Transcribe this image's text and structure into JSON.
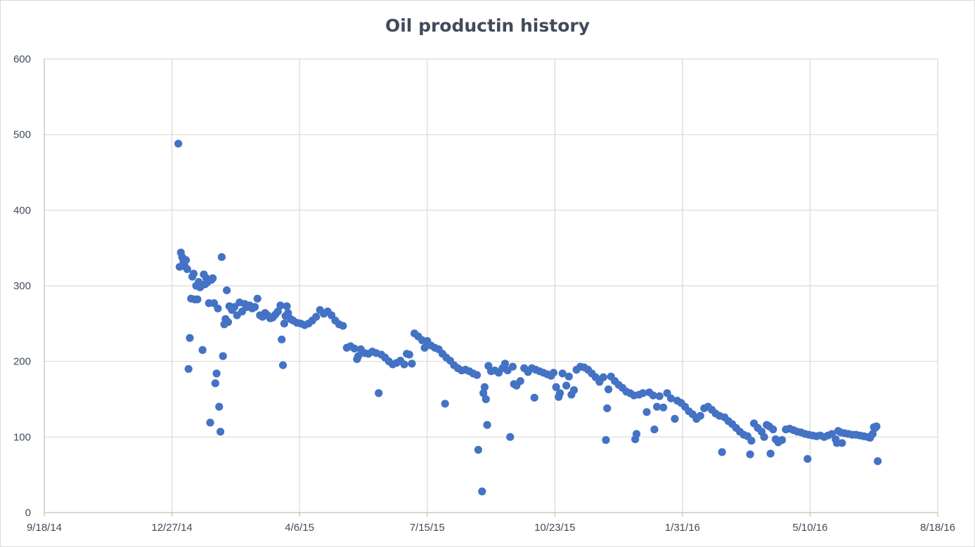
{
  "chart_data": {
    "type": "scatter",
    "title": "Oil productin history",
    "xlabel": "",
    "ylabel": "",
    "x_axis_type": "date",
    "xlim": [
      "2014-09-18",
      "2016-08-18"
    ],
    "ylim": [
      0,
      600
    ],
    "x_ticks": [
      "9/18/14",
      "12/27/14",
      "4/6/15",
      "7/15/15",
      "10/23/15",
      "1/31/16",
      "5/10/16",
      "8/18/16"
    ],
    "y_ticks": [
      0,
      100,
      200,
      300,
      400,
      500,
      600
    ],
    "grid": true,
    "legend": "none",
    "marker_color": "#4472c4",
    "series": [
      {
        "points": [
          [
            "2015-01-01",
            488
          ],
          [
            "2015-01-02",
            325
          ],
          [
            "2015-01-03",
            344
          ],
          [
            "2015-01-04",
            338
          ],
          [
            "2015-01-05",
            333
          ],
          [
            "2015-01-06",
            326
          ],
          [
            "2015-01-07",
            334
          ],
          [
            "2015-01-08",
            322
          ],
          [
            "2015-01-09",
            190
          ],
          [
            "2015-01-10",
            231
          ],
          [
            "2015-01-11",
            283
          ],
          [
            "2015-01-12",
            312
          ],
          [
            "2015-01-13",
            316
          ],
          [
            "2015-01-14",
            282
          ],
          [
            "2015-01-15",
            300
          ],
          [
            "2015-01-16",
            282
          ],
          [
            "2015-01-17",
            305
          ],
          [
            "2015-01-18",
            298
          ],
          [
            "2015-01-19",
            300
          ],
          [
            "2015-01-20",
            215
          ],
          [
            "2015-01-21",
            315
          ],
          [
            "2015-01-22",
            302
          ],
          [
            "2015-01-23",
            310
          ],
          [
            "2015-01-24",
            305
          ],
          [
            "2015-01-25",
            277
          ],
          [
            "2015-01-26",
            119
          ],
          [
            "2015-01-27",
            308
          ],
          [
            "2015-01-28",
            310
          ],
          [
            "2015-01-29",
            277
          ],
          [
            "2015-01-30",
            171
          ],
          [
            "2015-01-31",
            184
          ],
          [
            "2015-02-01",
            270
          ],
          [
            "2015-02-02",
            140
          ],
          [
            "2015-02-03",
            107
          ],
          [
            "2015-02-04",
            338
          ],
          [
            "2015-02-05",
            207
          ],
          [
            "2015-02-06",
            249
          ],
          [
            "2015-02-07",
            256
          ],
          [
            "2015-02-08",
            294
          ],
          [
            "2015-02-09",
            252
          ],
          [
            "2015-02-10",
            273
          ],
          [
            "2015-02-12",
            268
          ],
          [
            "2015-02-14",
            272
          ],
          [
            "2015-02-16",
            261
          ],
          [
            "2015-02-18",
            278
          ],
          [
            "2015-02-20",
            266
          ],
          [
            "2015-02-22",
            276
          ],
          [
            "2015-02-24",
            272
          ],
          [
            "2015-02-26",
            274
          ],
          [
            "2015-02-28",
            270
          ],
          [
            "2015-03-02",
            272
          ],
          [
            "2015-03-04",
            283
          ],
          [
            "2015-03-06",
            261
          ],
          [
            "2015-03-08",
            259
          ],
          [
            "2015-03-10",
            264
          ],
          [
            "2015-03-12",
            261
          ],
          [
            "2015-03-14",
            257
          ],
          [
            "2015-03-16",
            258
          ],
          [
            "2015-03-18",
            262
          ],
          [
            "2015-03-20",
            266
          ],
          [
            "2015-03-22",
            274
          ],
          [
            "2015-03-23",
            229
          ],
          [
            "2015-03-24",
            195
          ],
          [
            "2015-03-25",
            250
          ],
          [
            "2015-03-26",
            260
          ],
          [
            "2015-03-27",
            273
          ],
          [
            "2015-03-28",
            264
          ],
          [
            "2015-03-30",
            256
          ],
          [
            "2015-04-01",
            254
          ],
          [
            "2015-04-04",
            251
          ],
          [
            "2015-04-07",
            250
          ],
          [
            "2015-04-10",
            248
          ],
          [
            "2015-04-13",
            250
          ],
          [
            "2015-04-16",
            254
          ],
          [
            "2015-04-19",
            259
          ],
          [
            "2015-04-22",
            268
          ],
          [
            "2015-04-25",
            263
          ],
          [
            "2015-04-28",
            266
          ],
          [
            "2015-05-01",
            261
          ],
          [
            "2015-05-04",
            254
          ],
          [
            "2015-05-07",
            249
          ],
          [
            "2015-05-10",
            247
          ],
          [
            "2015-05-13",
            218
          ],
          [
            "2015-05-16",
            220
          ],
          [
            "2015-05-19",
            217
          ],
          [
            "2015-05-21",
            203
          ],
          [
            "2015-05-22",
            207
          ],
          [
            "2015-05-24",
            216
          ],
          [
            "2015-05-27",
            211
          ],
          [
            "2015-05-30",
            210
          ],
          [
            "2015-06-02",
            213
          ],
          [
            "2015-06-05",
            211
          ],
          [
            "2015-06-07",
            158
          ],
          [
            "2015-06-09",
            209
          ],
          [
            "2015-06-12",
            205
          ],
          [
            "2015-06-15",
            200
          ],
          [
            "2015-06-18",
            196
          ],
          [
            "2015-06-21",
            198
          ],
          [
            "2015-06-24",
            201
          ],
          [
            "2015-06-27",
            196
          ],
          [
            "2015-06-29",
            210
          ],
          [
            "2015-07-01",
            209
          ],
          [
            "2015-07-03",
            197
          ],
          [
            "2015-07-05",
            237
          ],
          [
            "2015-07-08",
            233
          ],
          [
            "2015-07-11",
            228
          ],
          [
            "2015-07-13",
            218
          ],
          [
            "2015-07-15",
            227
          ],
          [
            "2015-07-18",
            221
          ],
          [
            "2015-07-21",
            218
          ],
          [
            "2015-07-24",
            216
          ],
          [
            "2015-07-27",
            210
          ],
          [
            "2015-07-29",
            144
          ],
          [
            "2015-07-30",
            205
          ],
          [
            "2015-08-02",
            201
          ],
          [
            "2015-08-05",
            195
          ],
          [
            "2015-08-08",
            191
          ],
          [
            "2015-08-11",
            188
          ],
          [
            "2015-08-14",
            189
          ],
          [
            "2015-08-17",
            187
          ],
          [
            "2015-08-20",
            184
          ],
          [
            "2015-08-23",
            182
          ],
          [
            "2015-08-24",
            83
          ],
          [
            "2015-08-27",
            28
          ],
          [
            "2015-08-28",
            158
          ],
          [
            "2015-08-29",
            166
          ],
          [
            "2015-08-30",
            150
          ],
          [
            "2015-08-31",
            116
          ],
          [
            "2015-09-01",
            194
          ],
          [
            "2015-09-03",
            187
          ],
          [
            "2015-09-06",
            188
          ],
          [
            "2015-09-09",
            185
          ],
          [
            "2015-09-12",
            191
          ],
          [
            "2015-09-14",
            197
          ],
          [
            "2015-09-16",
            188
          ],
          [
            "2015-09-18",
            100
          ],
          [
            "2015-09-20",
            193
          ],
          [
            "2015-09-21",
            170
          ],
          [
            "2015-09-23",
            168
          ],
          [
            "2015-09-26",
            174
          ],
          [
            "2015-09-29",
            191
          ],
          [
            "2015-10-02",
            186
          ],
          [
            "2015-10-05",
            191
          ],
          [
            "2015-10-07",
            152
          ],
          [
            "2015-10-08",
            189
          ],
          [
            "2015-10-11",
            187
          ],
          [
            "2015-10-14",
            185
          ],
          [
            "2015-10-17",
            183
          ],
          [
            "2015-10-20",
            181
          ],
          [
            "2015-10-22",
            185
          ],
          [
            "2015-10-24",
            166
          ],
          [
            "2015-10-26",
            153
          ],
          [
            "2015-10-27",
            158
          ],
          [
            "2015-10-29",
            184
          ],
          [
            "2015-11-01",
            168
          ],
          [
            "2015-11-03",
            180
          ],
          [
            "2015-11-05",
            156
          ],
          [
            "2015-11-07",
            162
          ],
          [
            "2015-11-09",
            189
          ],
          [
            "2015-11-12",
            193
          ],
          [
            "2015-11-15",
            192
          ],
          [
            "2015-11-18",
            189
          ],
          [
            "2015-11-21",
            184
          ],
          [
            "2015-11-24",
            179
          ],
          [
            "2015-11-27",
            173
          ],
          [
            "2015-11-30",
            179
          ],
          [
            "2015-12-02",
            96
          ],
          [
            "2015-12-03",
            138
          ],
          [
            "2015-12-04",
            163
          ],
          [
            "2015-12-06",
            180
          ],
          [
            "2015-12-09",
            174
          ],
          [
            "2015-12-12",
            169
          ],
          [
            "2015-12-15",
            165
          ],
          [
            "2015-12-18",
            160
          ],
          [
            "2015-12-21",
            158
          ],
          [
            "2015-12-24",
            155
          ],
          [
            "2015-12-25",
            97
          ],
          [
            "2015-12-26",
            104
          ],
          [
            "2015-12-28",
            156
          ],
          [
            "2015-12-31",
            158
          ],
          [
            "2016-01-03",
            133
          ],
          [
            "2016-01-05",
            159
          ],
          [
            "2016-01-08",
            155
          ],
          [
            "2016-01-09",
            110
          ],
          [
            "2016-01-11",
            140
          ],
          [
            "2016-01-13",
            154
          ],
          [
            "2016-01-16",
            139
          ],
          [
            "2016-01-19",
            158
          ],
          [
            "2016-01-22",
            151
          ],
          [
            "2016-01-25",
            124
          ],
          [
            "2016-01-27",
            148
          ],
          [
            "2016-01-30",
            145
          ],
          [
            "2016-02-02",
            140
          ],
          [
            "2016-02-05",
            134
          ],
          [
            "2016-02-08",
            130
          ],
          [
            "2016-02-11",
            124
          ],
          [
            "2016-02-14",
            128
          ],
          [
            "2016-02-17",
            138
          ],
          [
            "2016-02-20",
            140
          ],
          [
            "2016-02-23",
            136
          ],
          [
            "2016-02-26",
            131
          ],
          [
            "2016-02-29",
            128
          ],
          [
            "2016-03-02",
            80
          ],
          [
            "2016-03-04",
            126
          ],
          [
            "2016-03-07",
            121
          ],
          [
            "2016-03-10",
            117
          ],
          [
            "2016-03-13",
            112
          ],
          [
            "2016-03-16",
            107
          ],
          [
            "2016-03-19",
            103
          ],
          [
            "2016-03-22",
            101
          ],
          [
            "2016-03-24",
            77
          ],
          [
            "2016-03-25",
            95
          ],
          [
            "2016-03-27",
            118
          ],
          [
            "2016-03-30",
            112
          ],
          [
            "2016-04-02",
            107
          ],
          [
            "2016-04-04",
            100
          ],
          [
            "2016-04-06",
            116
          ],
          [
            "2016-04-08",
            114
          ],
          [
            "2016-04-09",
            78
          ],
          [
            "2016-04-11",
            110
          ],
          [
            "2016-04-13",
            97
          ],
          [
            "2016-04-15",
            93
          ],
          [
            "2016-04-18",
            96
          ],
          [
            "2016-04-21",
            110
          ],
          [
            "2016-04-24",
            111
          ],
          [
            "2016-04-27",
            109
          ],
          [
            "2016-04-30",
            107
          ],
          [
            "2016-05-03",
            106
          ],
          [
            "2016-05-06",
            104
          ],
          [
            "2016-05-08",
            71
          ],
          [
            "2016-05-09",
            103
          ],
          [
            "2016-05-12",
            102
          ],
          [
            "2016-05-15",
            101
          ],
          [
            "2016-05-18",
            102
          ],
          [
            "2016-05-21",
            100
          ],
          [
            "2016-05-24",
            102
          ],
          [
            "2016-05-27",
            104
          ],
          [
            "2016-05-30",
            97
          ],
          [
            "2016-05-31",
            92
          ],
          [
            "2016-06-01",
            108
          ],
          [
            "2016-06-03",
            106
          ],
          [
            "2016-06-04",
            92
          ],
          [
            "2016-06-06",
            105
          ],
          [
            "2016-06-09",
            104
          ],
          [
            "2016-06-12",
            103
          ],
          [
            "2016-06-15",
            103
          ],
          [
            "2016-06-18",
            102
          ],
          [
            "2016-06-21",
            101
          ],
          [
            "2016-06-24",
            100
          ],
          [
            "2016-06-26",
            99
          ],
          [
            "2016-06-28",
            104
          ],
          [
            "2016-06-29",
            113
          ],
          [
            "2016-06-30",
            112
          ],
          [
            "2016-07-01",
            114
          ],
          [
            "2016-07-02",
            68
          ]
        ]
      }
    ]
  }
}
